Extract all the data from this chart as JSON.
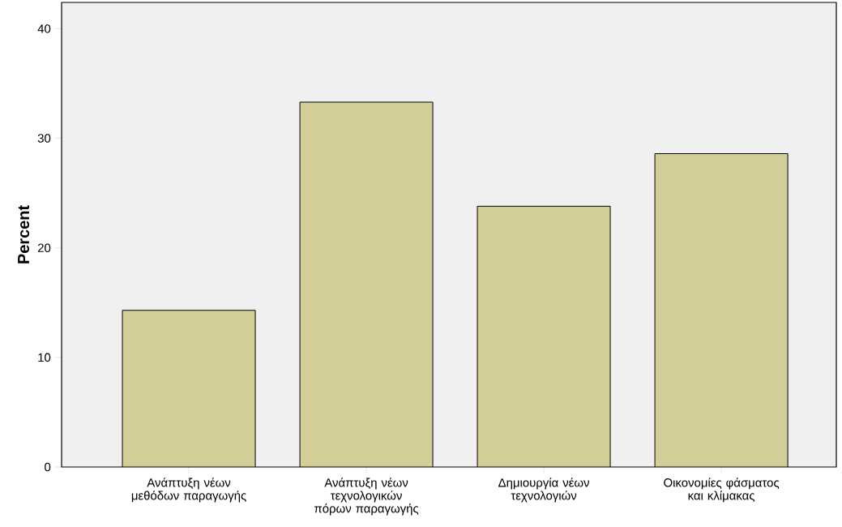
{
  "chart_data": {
    "type": "bar",
    "ylabel": "Percent",
    "categories": [
      "Ανάπτυξη νέων μεθόδων παραγωγής",
      "Ανάπτυξη νέων τεχνολογικών πόρων παραγωγής",
      "Δημιουργία νέων τεχνολογιών",
      "Οικονομίες φάσματος και κλίμακας"
    ],
    "values": [
      14.3,
      33.3,
      23.8,
      28.6
    ],
    "color": "#d3cd98",
    "ylim": [
      0,
      42.4
    ],
    "yticks": [
      0,
      10,
      20,
      30,
      40
    ]
  }
}
